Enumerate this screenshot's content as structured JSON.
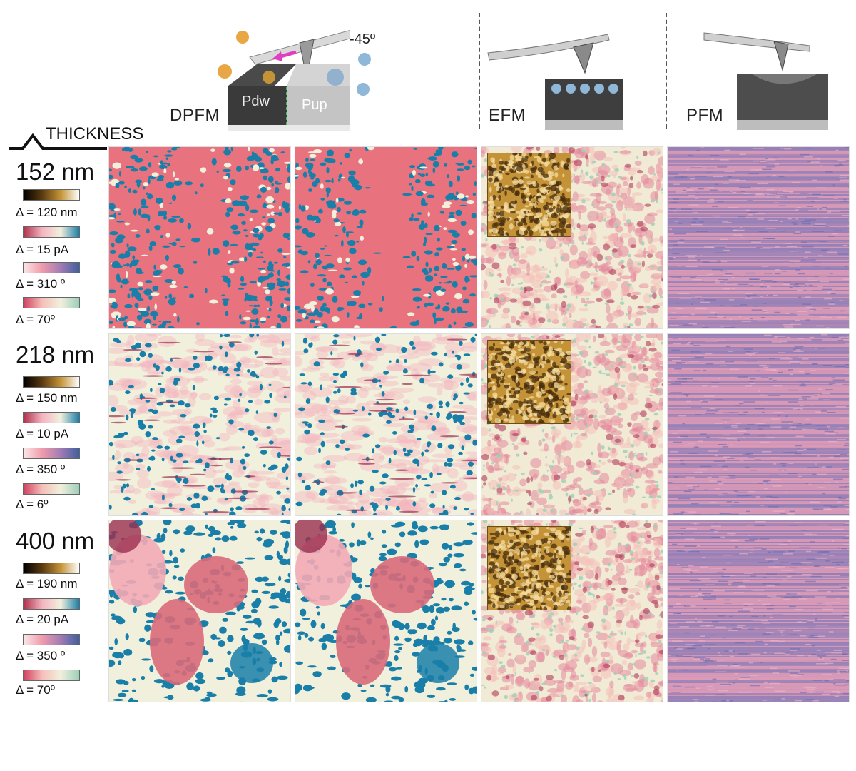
{
  "header": {
    "methods": [
      "DPFM",
      "EFM",
      "PFM"
    ],
    "angle": "-45º",
    "block_left": "Pdw",
    "block_right": "Pup"
  },
  "side": {
    "thickness_title": "THICKNESS",
    "rows": [
      {
        "thickness": "152 nm",
        "scales": [
          "Δ = 120 nm",
          "Δ = 15 pA",
          "Δ = 310 º",
          "Δ = 70º"
        ]
      },
      {
        "thickness": "218 nm",
        "scales": [
          "Δ = 150 nm",
          "Δ = 10 pA",
          "Δ = 350 º",
          "Δ = 6º"
        ]
      },
      {
        "thickness": "400 nm",
        "scales": [
          "Δ = 190 nm",
          "Δ = 20 pA",
          "Δ = 350 º",
          "Δ = 70º"
        ]
      }
    ]
  },
  "colors": {
    "pink": "#e8737f",
    "teal": "#1a7fa8",
    "cream": "#f1f0dd",
    "purple": "#7e7ab8",
    "gold": "#c49337",
    "brown": "#4a2f0f"
  }
}
